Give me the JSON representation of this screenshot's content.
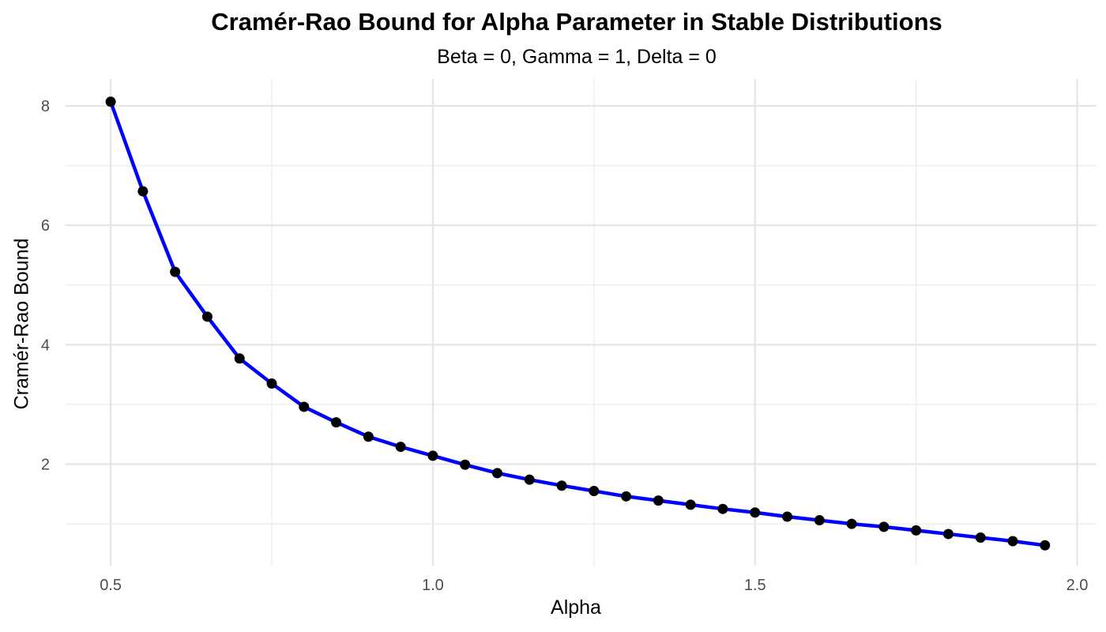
{
  "chart_data": {
    "type": "line",
    "title": "Cramér-Rao Bound for Alpha Parameter in Stable Distributions",
    "subtitle": "Beta = 0, Gamma = 1, Delta = 0",
    "xlabel": "Alpha",
    "ylabel": "Cramér-Rao Bound",
    "x_ticks": [
      "0.5",
      "1.0",
      "1.5",
      "2.0"
    ],
    "y_ticks": [
      "2",
      "4",
      "6",
      "8"
    ],
    "xlim": [
      0.43,
      2.03
    ],
    "ylim": [
      0.3,
      8.45
    ],
    "grid": true,
    "legend": "none",
    "line_color": "#0000ff",
    "point_color": "#000000",
    "series": [
      {
        "x": [
          0.5,
          0.55,
          0.6,
          0.65,
          0.7,
          0.75,
          0.8,
          0.85,
          0.9,
          0.95,
          1.0,
          1.05,
          1.1,
          1.15,
          1.2,
          1.25,
          1.3,
          1.35,
          1.4,
          1.45,
          1.5,
          1.55,
          1.6,
          1.65,
          1.7,
          1.75,
          1.8,
          1.85,
          1.9,
          1.95
        ],
        "values": [
          8.07,
          6.57,
          5.22,
          4.47,
          3.77,
          3.35,
          2.96,
          2.7,
          2.46,
          2.29,
          2.14,
          1.99,
          1.85,
          1.74,
          1.64,
          1.55,
          1.46,
          1.39,
          1.32,
          1.25,
          1.19,
          1.12,
          1.06,
          1.0,
          0.95,
          0.89,
          0.83,
          0.77,
          0.71,
          0.64
        ]
      }
    ]
  }
}
